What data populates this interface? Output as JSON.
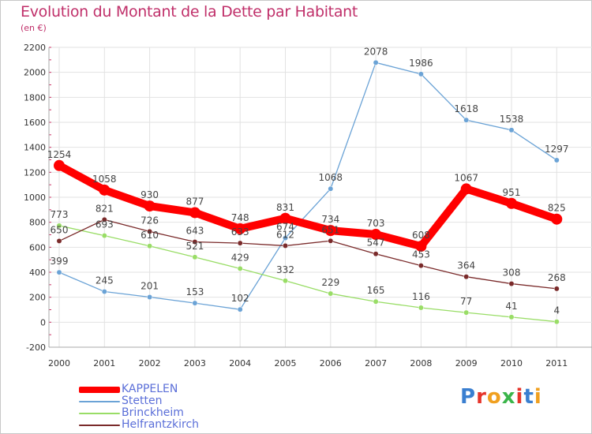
{
  "title": "Evolution du Montant de la Dette par Habitant",
  "subtitle": "(en €)",
  "logo_text": "Proxiti",
  "chart_data": {
    "type": "line",
    "title": "Evolution du Montant de la Dette par Habitant",
    "subtitle": "(en €)",
    "x": [
      "2000",
      "2001",
      "2002",
      "2003",
      "2004",
      "2005",
      "2006",
      "2007",
      "2008",
      "2009",
      "2010",
      "2011"
    ],
    "ylim": [
      -200,
      2200
    ],
    "yticks": [
      "-200",
      "0",
      "200",
      "400",
      "600",
      "800",
      "1000",
      "1200",
      "1400",
      "1600",
      "1800",
      "2000",
      "2200"
    ],
    "grid": true,
    "legend_position": "bottom-left",
    "series": [
      {
        "name": "KAPPELEN",
        "color": "#ff0000",
        "values": [
          1254,
          1058,
          930,
          877,
          748,
          831,
          734,
          703,
          608,
          1067,
          951,
          825
        ],
        "labels": [
          "1254",
          "1058",
          "930",
          "877",
          "748",
          "831",
          "734",
          "703",
          "608",
          "1067",
          "951",
          "825"
        ]
      },
      {
        "name": "Stetten",
        "color": "#6ba3d6",
        "values": [
          399,
          245,
          201,
          153,
          102,
          674,
          1068,
          2078,
          1986,
          1618,
          1538,
          1297
        ],
        "labels": [
          "399",
          "245",
          "201",
          "153",
          "102",
          "674",
          "1068",
          "2078",
          "1986",
          "1618",
          "1538",
          "1297"
        ]
      },
      {
        "name": "Brinckheim",
        "color": "#99dd66",
        "values": [
          773,
          693,
          610,
          521,
          429,
          332,
          229,
          165,
          116,
          77,
          41,
          4
        ],
        "labels": [
          "773",
          "693",
          "610",
          "521",
          "429",
          "332",
          "229",
          "165",
          "116",
          "77",
          "41",
          "4"
        ]
      },
      {
        "name": "Helfrantzkirch",
        "color": "#7a2a2a",
        "values": [
          650,
          821,
          726,
          643,
          633,
          612,
          651,
          547,
          453,
          364,
          308,
          268
        ],
        "labels": [
          "650",
          "821",
          "726",
          "643",
          "633",
          "612",
          "651",
          "547",
          "453",
          "364",
          "308",
          "268"
        ]
      }
    ]
  }
}
